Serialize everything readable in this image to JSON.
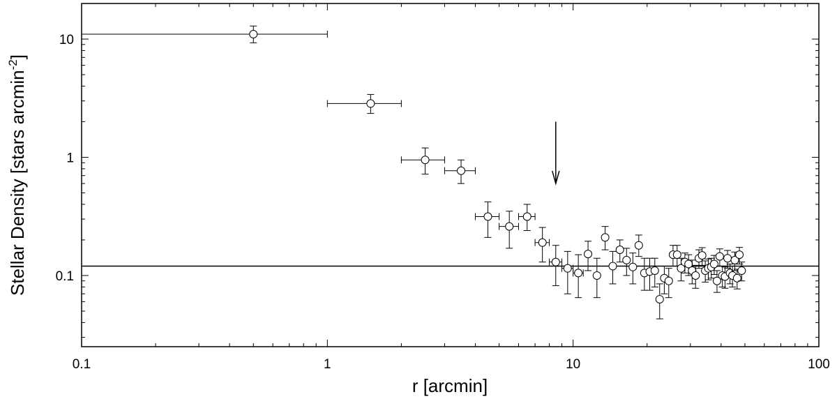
{
  "chart_data": {
    "type": "scatter",
    "title": "",
    "xlabel": "r [arcmin]",
    "ylabel_main": "Stellar Density [stars arcmin",
    "ylabel_sup": "-2",
    "ylabel_tail": "]",
    "xscale": "log",
    "yscale": "log",
    "xlim": [
      0.1,
      100
    ],
    "ylim": [
      0.025,
      20
    ],
    "grid": false,
    "legend": "none",
    "x_ticks": [
      {
        "value": 0.1,
        "label": "0.1"
      },
      {
        "value": 1,
        "label": "1"
      },
      {
        "value": 10,
        "label": "10"
      },
      {
        "value": 100,
        "label": "100"
      }
    ],
    "y_ticks": [
      {
        "value": 0.1,
        "label": "0.1"
      },
      {
        "value": 1,
        "label": "1"
      },
      {
        "value": 10,
        "label": "10"
      }
    ],
    "background_level": 0.12,
    "arrow": {
      "x": 8.5,
      "y_from": 2.0,
      "y_to": 0.6
    },
    "series": [
      {
        "marker": "open-circle",
        "points": [
          {
            "x": 0.5,
            "y": 11.0,
            "xerr": [
              0.1,
              1.0
            ],
            "yerr": [
              9.3,
              12.9
            ]
          },
          {
            "x": 1.5,
            "y": 2.85,
            "xerr": [
              1.0,
              2.0
            ],
            "yerr": [
              2.35,
              3.4
            ]
          },
          {
            "x": 2.5,
            "y": 0.95,
            "xerr": [
              2.0,
              3.0
            ],
            "yerr": [
              0.72,
              1.2
            ]
          },
          {
            "x": 3.5,
            "y": 0.77,
            "xerr": [
              3.0,
              4.0
            ],
            "yerr": [
              0.6,
              0.95
            ]
          },
          {
            "x": 4.5,
            "y": 0.315,
            "xerr": [
              4.0,
              5.0
            ],
            "yerr": [
              0.21,
              0.42
            ]
          },
          {
            "x": 5.5,
            "y": 0.26,
            "xerr": [
              5.0,
              6.0
            ],
            "yerr": [
              0.17,
              0.35
            ]
          },
          {
            "x": 6.5,
            "y": 0.315,
            "xerr": [
              6.0,
              7.0
            ],
            "yerr": [
              0.24,
              0.4
            ]
          },
          {
            "x": 7.5,
            "y": 0.19,
            "xerr": [
              7.0,
              8.0
            ],
            "yerr": [
              0.13,
              0.255
            ]
          },
          {
            "x": 8.5,
            "y": 0.13,
            "xerr": [
              8.0,
              9.0
            ],
            "yerr": [
              0.082,
              0.18
            ]
          },
          {
            "x": 9.5,
            "y": 0.115,
            "xerr": [
              9.0,
              10.0
            ],
            "yerr": [
              0.07,
              0.16
            ]
          },
          {
            "x": 10.5,
            "y": 0.105,
            "xerr": [
              10.0,
              11.0
            ],
            "yerr": [
              0.065,
              0.15
            ]
          },
          {
            "x": 11.5,
            "y": 0.152,
            "yerr": [
              0.11,
              0.195
            ]
          },
          {
            "x": 12.5,
            "y": 0.1,
            "yerr": [
              0.065,
              0.14
            ]
          },
          {
            "x": 13.5,
            "y": 0.21,
            "yerr": [
              0.165,
              0.26
            ]
          },
          {
            "x": 14.5,
            "y": 0.12,
            "yerr": [
              0.085,
              0.16
            ]
          },
          {
            "x": 15.5,
            "y": 0.165,
            "yerr": [
              0.13,
              0.2
            ]
          },
          {
            "x": 16.5,
            "y": 0.135,
            "yerr": [
              0.1,
              0.17
            ]
          },
          {
            "x": 17.5,
            "y": 0.118,
            "yerr": [
              0.085,
              0.155
            ]
          },
          {
            "x": 18.5,
            "y": 0.18,
            "yerr": [
              0.145,
              0.22
            ]
          },
          {
            "x": 19.5,
            "y": 0.105,
            "yerr": [
              0.075,
              0.14
            ]
          },
          {
            "x": 20.5,
            "y": 0.108,
            "yerr": [
              0.075,
              0.14
            ]
          },
          {
            "x": 21.5,
            "y": 0.11,
            "yerr": [
              0.08,
              0.14
            ]
          },
          {
            "x": 22.5,
            "y": 0.063,
            "yerr": [
              0.043,
              0.085
            ]
          },
          {
            "x": 23.5,
            "y": 0.095,
            "yerr": [
              0.07,
              0.12
            ]
          },
          {
            "x": 24.5,
            "y": 0.09,
            "yerr": [
              0.065,
              0.115
            ]
          },
          {
            "x": 25.5,
            "y": 0.15,
            "yerr": [
              0.12,
              0.18
            ]
          },
          {
            "x": 26.5,
            "y": 0.15,
            "yerr": [
              0.12,
              0.18
            ]
          },
          {
            "x": 27.5,
            "y": 0.115,
            "yerr": [
              0.09,
              0.14
            ]
          },
          {
            "x": 28.5,
            "y": 0.13,
            "yerr": [
              0.105,
              0.155
            ]
          },
          {
            "x": 29.5,
            "y": 0.125,
            "yerr": [
              0.1,
              0.15
            ]
          },
          {
            "x": 30.5,
            "y": 0.11,
            "yerr": [
              0.085,
              0.135
            ]
          },
          {
            "x": 31.5,
            "y": 0.1,
            "yerr": [
              0.078,
              0.122
            ]
          },
          {
            "x": 32.5,
            "y": 0.14,
            "yerr": [
              0.115,
              0.165
            ]
          },
          {
            "x": 33.5,
            "y": 0.148,
            "yerr": [
              0.122,
              0.172
            ]
          },
          {
            "x": 34.5,
            "y": 0.11,
            "yerr": [
              0.088,
              0.133
            ]
          },
          {
            "x": 35.5,
            "y": 0.115,
            "yerr": [
              0.092,
              0.138
            ]
          },
          {
            "x": 36.5,
            "y": 0.118,
            "yerr": [
              0.095,
              0.14
            ]
          },
          {
            "x": 37.5,
            "y": 0.125,
            "yerr": [
              0.102,
              0.148
            ]
          },
          {
            "x": 38.5,
            "y": 0.09,
            "yerr": [
              0.072,
              0.11
            ]
          },
          {
            "x": 39.5,
            "y": 0.145,
            "yerr": [
              0.12,
              0.168
            ]
          },
          {
            "x": 40.5,
            "y": 0.1,
            "yerr": [
              0.08,
              0.12
            ]
          },
          {
            "x": 41.5,
            "y": 0.098,
            "yerr": [
              0.078,
              0.118
            ]
          },
          {
            "x": 42.5,
            "y": 0.14,
            "yerr": [
              0.115,
              0.163
            ]
          },
          {
            "x": 43.5,
            "y": 0.105,
            "yerr": [
              0.085,
              0.125
            ]
          },
          {
            "x": 44.5,
            "y": 0.1,
            "yerr": [
              0.08,
              0.12
            ]
          },
          {
            "x": 45.5,
            "y": 0.135,
            "yerr": [
              0.11,
              0.158
            ]
          },
          {
            "x": 46.5,
            "y": 0.095,
            "yerr": [
              0.077,
              0.113
            ]
          },
          {
            "x": 47.5,
            "y": 0.15,
            "yerr": [
              0.125,
              0.173
            ]
          },
          {
            "x": 48.5,
            "y": 0.11,
            "yerr": [
              0.09,
              0.13
            ]
          }
        ]
      }
    ]
  }
}
